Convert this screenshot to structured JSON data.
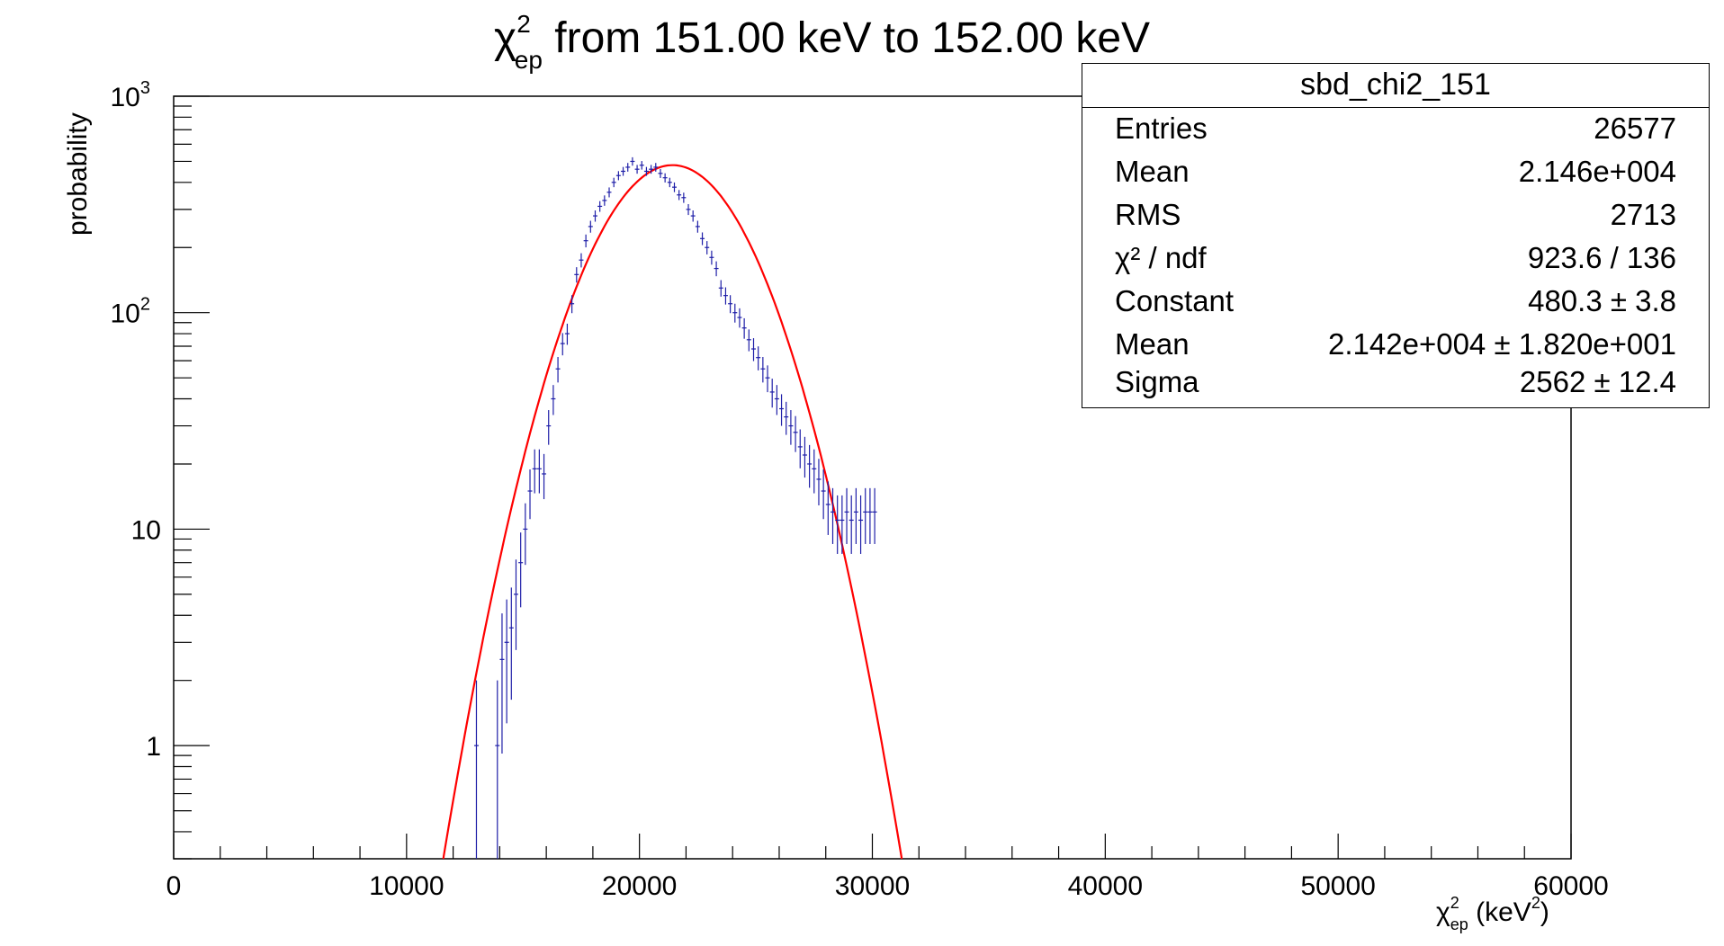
{
  "chart_data": {
    "type": "scatter",
    "title_main": "χ",
    "title_sup": "2",
    "title_sub": "ep",
    "title_rest": " from 151.00 keV to 152.00 keV",
    "ylabel": "probability",
    "xlabel_main": "χ",
    "xlabel_sup": "2",
    "xlabel_sub": "ep",
    "xlabel_unit": " (keV",
    "xlabel_unit_sup": "2",
    "xlabel_unit_end": ")",
    "xlim": [
      0,
      60000
    ],
    "ylim": [
      0.3,
      1000
    ],
    "yscale": "log",
    "xticks": [
      0,
      10000,
      20000,
      30000,
      40000,
      50000,
      60000
    ],
    "yticks": [
      {
        "value": 1,
        "label": "1"
      },
      {
        "value": 10,
        "label": "10"
      },
      {
        "value": 100,
        "label": "10",
        "sup": "2"
      },
      {
        "value": 1000,
        "label": "10",
        "sup": "3"
      }
    ],
    "colors": {
      "data": "#1f1fa8",
      "fit": "#ff0000",
      "axis": "#000000"
    },
    "series": [
      {
        "kind": "histogram-points",
        "x": [
          13000,
          13900,
          14100,
          14300,
          14500,
          14700,
          14900,
          15100,
          15300,
          15500,
          15700,
          15900,
          16100,
          16300,
          16500,
          16700,
          16900,
          17100,
          17300,
          17500,
          17700,
          17900,
          18100,
          18300,
          18500,
          18700,
          18900,
          19100,
          19300,
          19500,
          19700,
          19900,
          20100,
          20300,
          20500,
          20700,
          20900,
          21100,
          21300,
          21500,
          21700,
          21900,
          22100,
          22300,
          22500,
          22700,
          22900,
          23100,
          23300,
          23500,
          23700,
          23900,
          24100,
          24300,
          24500,
          24700,
          24900,
          25100,
          25300,
          25500,
          25700,
          25900,
          26100,
          26300,
          26500,
          26700,
          26900,
          27100,
          27300,
          27500,
          27700,
          27900,
          28100,
          28300,
          28500,
          28700,
          28900,
          29100,
          29300,
          29500,
          29700,
          29900,
          30100
        ],
        "y": [
          1,
          1,
          2.5,
          3,
          3.5,
          5,
          7,
          10,
          15,
          19,
          19,
          18,
          30,
          40,
          55,
          72,
          80,
          110,
          150,
          175,
          215,
          250,
          280,
          310,
          330,
          360,
          400,
          430,
          450,
          470,
          500,
          460,
          480,
          450,
          460,
          470,
          440,
          420,
          400,
          380,
          350,
          340,
          300,
          280,
          250,
          220,
          200,
          180,
          160,
          130,
          120,
          110,
          100,
          95,
          85,
          75,
          68,
          62,
          55,
          50,
          43,
          40,
          36,
          33,
          30,
          28,
          24,
          22,
          20,
          19,
          17,
          15,
          13,
          12,
          11,
          11,
          12,
          11,
          12,
          11,
          12,
          12,
          12
        ]
      },
      {
        "kind": "gaussian-fit",
        "constant": 480.3,
        "mean": 21420,
        "sigma": 2562
      }
    ]
  },
  "stats": {
    "title": "sbd_chi2_151",
    "rows": [
      {
        "label": "Entries",
        "value": "26577"
      },
      {
        "label": "Mean",
        "value": "2.146e+004"
      },
      {
        "label": "RMS",
        "value": "2713"
      },
      {
        "label": "χ² / ndf",
        "value": "923.6 / 136"
      },
      {
        "label": "Constant",
        "value": "480.3 ± 3.8"
      },
      {
        "label": "Mean",
        "value": "2.142e+004 ± 1.820e+001"
      },
      {
        "label": "Sigma",
        "value": "2562 ± 12.4"
      }
    ]
  }
}
